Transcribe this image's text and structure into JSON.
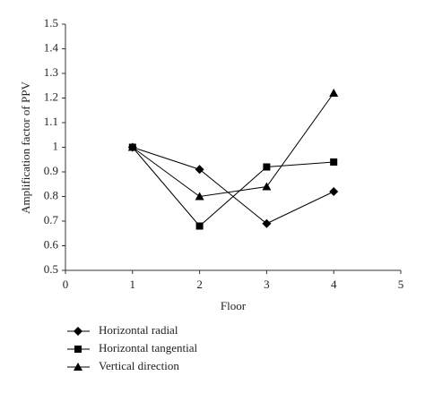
{
  "chart_data": {
    "type": "line",
    "x_label": "Floor",
    "y_label": "Amplification factor of PPV",
    "x": [
      1,
      2,
      3,
      4
    ],
    "series": [
      {
        "name": "Horizontal radial",
        "color": "#000000",
        "marker": "diamond",
        "values": [
          1,
          0.91,
          0.69,
          0.82
        ]
      },
      {
        "name": "Horizontal tangential",
        "color": "#000000",
        "marker": "square",
        "values": [
          1,
          0.68,
          0.92,
          0.94
        ]
      },
      {
        "name": "Vertical direction",
        "color": "#000000",
        "marker": "triangle",
        "values": [
          1,
          0.8,
          0.84,
          1.22
        ]
      }
    ],
    "xlim": [
      0,
      5
    ],
    "xticks": [
      0,
      1,
      2,
      3,
      4,
      5
    ],
    "ylim": [
      0.5,
      1.5
    ],
    "yticks": [
      0.5,
      0.6,
      0.7,
      0.8,
      0.9,
      1,
      1.1,
      1.2,
      1.3,
      1.4,
      1.5
    ],
    "grid": false,
    "legend": "bottom"
  }
}
